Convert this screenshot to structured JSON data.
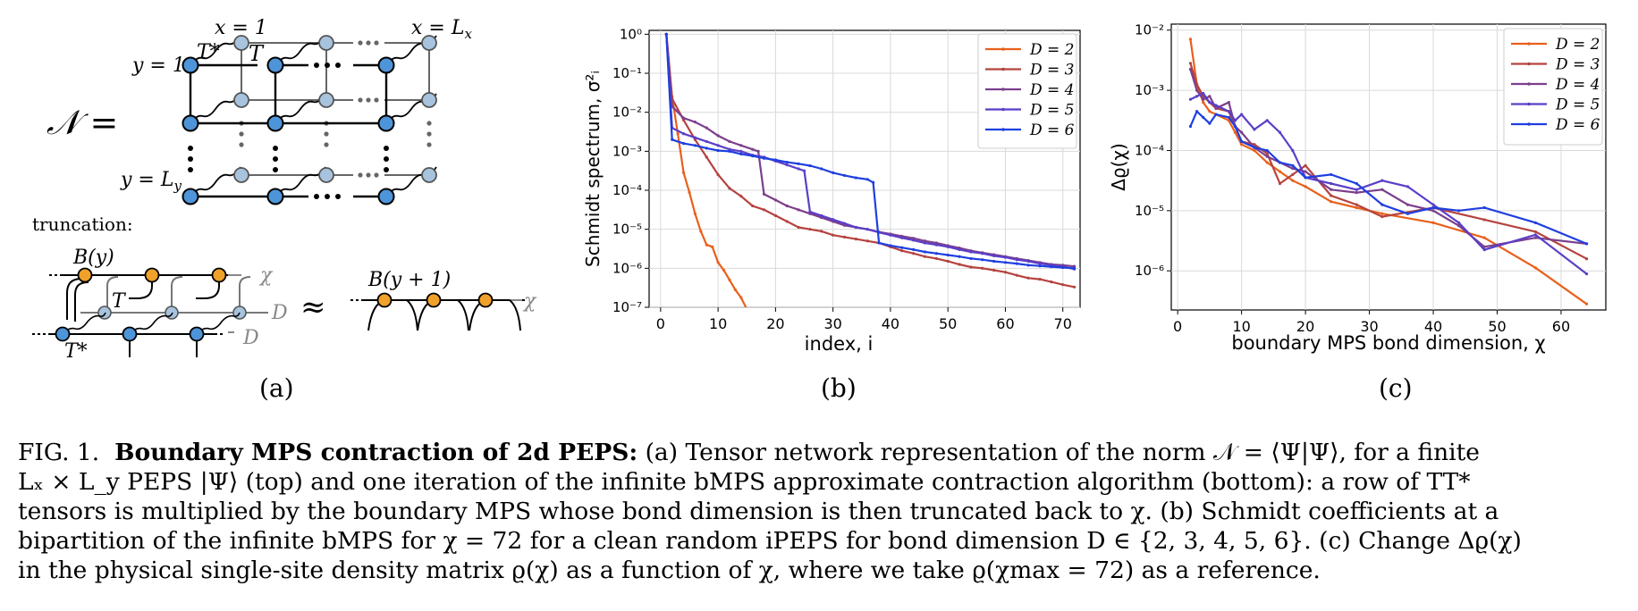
{
  "panel_a": {
    "norm_symbol": "𝒩 =",
    "label_x1": "x = 1",
    "label_xL": "x = L",
    "label_xL_sub": "x",
    "label_y1": "y = 1",
    "label_yL": "y = L",
    "label_yL_sub": "y",
    "label_T": "T",
    "label_Tstar": "T*",
    "truncation": "truncation:",
    "label_By": "B(y)",
    "label_By1": "B(y + 1)",
    "label_T2": "T",
    "label_Tstar2": "T*",
    "label_chi": "χ",
    "label_chi2": "χ",
    "label_D1": "D",
    "label_D2": "D",
    "approx": "≈",
    "panel_label": "(a)"
  },
  "panel_b_label": "(b)",
  "panel_c_label": "(c)",
  "colors": {
    "node_dark": "#4e94d8",
    "node_light": "#a7c3dd",
    "node_orange": "#f0a12a",
    "D2": "#e8601c",
    "D3": "#b5433f",
    "D4": "#7b3f8c",
    "D5": "#5b3ec8",
    "D6": "#1f3fe0"
  },
  "chart_data": [
    {
      "type": "line",
      "xlabel": "index, i",
      "ylabel": "Schmidt spectrum, σ²ᵢ",
      "xlim": [
        -2,
        73
      ],
      "ylim_log10": [
        -7,
        0.1
      ],
      "y_scale": "log",
      "xticks": [
        "0",
        "10",
        "20",
        "30",
        "40",
        "50",
        "60",
        "70"
      ],
      "yticks": [
        "10⁰",
        "10⁻¹",
        "10⁻²",
        "10⁻³",
        "10⁻⁴",
        "10⁻⁵",
        "10⁻⁶",
        "10⁻⁷"
      ],
      "grid": true,
      "legend_position": "top-right",
      "series": [
        {
          "name": "D = 2",
          "color": "#e8601c",
          "x": [
            1,
            2,
            3,
            4,
            5,
            6,
            7,
            8,
            9,
            10,
            11,
            12,
            13,
            14,
            15
          ],
          "y_log10": [
            0,
            -1.6,
            -2.55,
            -3.55,
            -4.05,
            -4.6,
            -5.05,
            -5.4,
            -5.45,
            -5.85,
            -6.05,
            -6.3,
            -6.55,
            -6.75,
            -7.05
          ]
        },
        {
          "name": "D = 3",
          "color": "#b5433f",
          "x": [
            1,
            2,
            4,
            6,
            8,
            10,
            12,
            14,
            16,
            18,
            20,
            22,
            24,
            26,
            28,
            30,
            32,
            34,
            36,
            38,
            40,
            42,
            44,
            46,
            48,
            50,
            52,
            54,
            56,
            58,
            60,
            62,
            64,
            66,
            68,
            70,
            72
          ],
          "y_log10": [
            0,
            -1.65,
            -2.2,
            -2.7,
            -3.15,
            -3.6,
            -3.95,
            -4.15,
            -4.4,
            -4.5,
            -4.65,
            -4.8,
            -4.95,
            -5.0,
            -5.05,
            -5.15,
            -5.2,
            -5.25,
            -5.3,
            -5.35,
            -5.45,
            -5.55,
            -5.62,
            -5.7,
            -5.75,
            -5.82,
            -5.9,
            -5.97,
            -6.0,
            -6.05,
            -6.1,
            -6.18,
            -6.25,
            -6.28,
            -6.35,
            -6.42,
            -6.48
          ]
        },
        {
          "name": "D = 4",
          "color": "#7b3f8c",
          "x": [
            1,
            2,
            4,
            6,
            8,
            10,
            12,
            14,
            16,
            17,
            18,
            20,
            22,
            24,
            26,
            28,
            30,
            32,
            34,
            36,
            38,
            40,
            42,
            44,
            46,
            48,
            50,
            52,
            54,
            56,
            58,
            60,
            62,
            64,
            66,
            68,
            70,
            72
          ],
          "y_log10": [
            0,
            -1.85,
            -2.15,
            -2.25,
            -2.4,
            -2.6,
            -2.75,
            -2.85,
            -2.95,
            -3.0,
            -4.1,
            -4.25,
            -4.4,
            -4.5,
            -4.6,
            -4.7,
            -4.8,
            -4.9,
            -4.95,
            -5.0,
            -5.07,
            -5.12,
            -5.18,
            -5.23,
            -5.3,
            -5.35,
            -5.42,
            -5.48,
            -5.55,
            -5.6,
            -5.65,
            -5.7,
            -5.75,
            -5.8,
            -5.85,
            -5.9,
            -5.92,
            -5.95
          ]
        },
        {
          "name": "D = 5",
          "color": "#5b3ec8",
          "x": [
            1,
            2,
            4,
            6,
            8,
            10,
            12,
            14,
            16,
            18,
            20,
            22,
            24,
            25,
            26,
            28,
            30,
            32,
            34,
            36,
            38,
            40,
            42,
            44,
            46,
            48,
            50,
            52,
            54,
            56,
            58,
            60,
            62,
            64,
            66,
            68,
            70,
            72
          ],
          "y_log10": [
            0,
            -2.4,
            -2.55,
            -2.65,
            -2.75,
            -2.85,
            -2.95,
            -3.0,
            -3.1,
            -3.15,
            -3.25,
            -3.35,
            -3.45,
            -3.5,
            -4.55,
            -4.65,
            -4.75,
            -4.85,
            -4.95,
            -5.0,
            -5.08,
            -5.15,
            -5.22,
            -5.28,
            -5.35,
            -5.4,
            -5.45,
            -5.52,
            -5.58,
            -5.62,
            -5.68,
            -5.72,
            -5.78,
            -5.82,
            -5.88,
            -5.92,
            -5.96,
            -6.02
          ]
        },
        {
          "name": "D = 6",
          "color": "#1f3fe0",
          "x": [
            1,
            2,
            4,
            6,
            8,
            10,
            12,
            14,
            16,
            18,
            20,
            22,
            24,
            26,
            28,
            30,
            32,
            34,
            36,
            37,
            38,
            40,
            42,
            44,
            46,
            48,
            50,
            52,
            54,
            56,
            58,
            60,
            62,
            64,
            66,
            68,
            70,
            72
          ],
          "y_log10": [
            0,
            -2.7,
            -2.8,
            -2.85,
            -2.92,
            -2.98,
            -3.0,
            -3.07,
            -3.12,
            -3.18,
            -3.22,
            -3.28,
            -3.32,
            -3.37,
            -3.45,
            -3.55,
            -3.62,
            -3.68,
            -3.72,
            -3.8,
            -5.35,
            -5.42,
            -5.47,
            -5.52,
            -5.58,
            -5.62,
            -5.66,
            -5.7,
            -5.75,
            -5.78,
            -5.82,
            -5.85,
            -5.88,
            -5.92,
            -5.94,
            -5.96,
            -5.98,
            -6.0
          ]
        }
      ]
    },
    {
      "type": "line",
      "xlabel": "boundary MPS bond dimension, χ",
      "ylabel": "Δϱ(χ)",
      "xlim": [
        -1,
        67
      ],
      "ylim_log10": [
        -6.65,
        -1.9
      ],
      "y_scale": "log",
      "xticks": [
        "0",
        "10",
        "20",
        "30",
        "40",
        "50",
        "60"
      ],
      "yticks": [
        "10⁻²",
        "10⁻³",
        "10⁻⁴",
        "10⁻⁵",
        "10⁻⁶"
      ],
      "grid": true,
      "legend_position": "top-right",
      "series": [
        {
          "name": "D = 2",
          "color": "#e8601c",
          "x": [
            2,
            3,
            4,
            5,
            6,
            8,
            9,
            10,
            12,
            14,
            16,
            18,
            20,
            24,
            28,
            32,
            40,
            48,
            56,
            64
          ],
          "y_log10": [
            -2.15,
            -2.9,
            -3.2,
            -3.35,
            -3.4,
            -3.5,
            -3.7,
            -3.9,
            -4.0,
            -4.2,
            -4.35,
            -4.5,
            -4.6,
            -4.85,
            -4.95,
            -5.05,
            -5.2,
            -5.45,
            -5.95,
            -6.55
          ]
        },
        {
          "name": "D = 3",
          "color": "#b5433f",
          "x": [
            2,
            3,
            4,
            5,
            6,
            8,
            9,
            10,
            12,
            14,
            16,
            18,
            20,
            24,
            28,
            32,
            40,
            48,
            56,
            64
          ],
          "y_log10": [
            -2.55,
            -2.9,
            -3.1,
            -3.2,
            -3.3,
            -3.35,
            -3.6,
            -3.85,
            -3.9,
            -4.05,
            -4.55,
            -4.4,
            -4.25,
            -4.75,
            -4.9,
            -5.1,
            -4.95,
            -5.15,
            -5.35,
            -5.8
          ]
        },
        {
          "name": "D = 4",
          "color": "#7b3f8c",
          "x": [
            2,
            3,
            4,
            5,
            6,
            8,
            9,
            10,
            12,
            14,
            16,
            18,
            20,
            24,
            28,
            32,
            36,
            40,
            44,
            48,
            56,
            64
          ],
          "y_log10": [
            -2.65,
            -3.0,
            -3.15,
            -3.1,
            -3.3,
            -3.2,
            -3.6,
            -3.7,
            -3.95,
            -4.1,
            -4.2,
            -4.3,
            -4.35,
            -4.65,
            -4.7,
            -4.65,
            -4.9,
            -5.0,
            -5.25,
            -5.6,
            -5.45,
            -5.55
          ]
        },
        {
          "name": "D = 5",
          "color": "#5b3ec8",
          "x": [
            2,
            3,
            4,
            5,
            6,
            8,
            9,
            10,
            12,
            14,
            16,
            18,
            20,
            24,
            28,
            32,
            36,
            40,
            44,
            48,
            56,
            64
          ],
          "y_log10": [
            -3.15,
            -3.1,
            -3.05,
            -3.2,
            -3.25,
            -3.35,
            -3.5,
            -3.4,
            -3.65,
            -3.5,
            -3.7,
            -4.0,
            -4.45,
            -4.55,
            -4.65,
            -4.5,
            -4.6,
            -4.9,
            -5.2,
            -5.65,
            -5.4,
            -6.05
          ]
        },
        {
          "name": "D = 6",
          "color": "#1f3fe0",
          "x": [
            2,
            3,
            4,
            5,
            6,
            8,
            9,
            10,
            12,
            14,
            16,
            18,
            20,
            24,
            28,
            32,
            36,
            40,
            44,
            48,
            56,
            64
          ],
          "y_log10": [
            -3.6,
            -3.35,
            -3.45,
            -3.55,
            -3.4,
            -3.45,
            -3.6,
            -3.85,
            -3.95,
            -4.0,
            -4.2,
            -4.25,
            -4.45,
            -4.4,
            -4.55,
            -4.9,
            -5.05,
            -4.95,
            -5.0,
            -4.95,
            -5.2,
            -5.55
          ]
        }
      ]
    }
  ],
  "caption": {
    "fig": "FIG. 1.",
    "title": "Boundary MPS contraction of 2d PEPS:",
    "l1": "(a) Tensor network representation of the norm 𝒩 = ⟨Ψ|Ψ⟩, for a finite",
    "l2": "Lₓ × L_y PEPS |Ψ⟩ (top) and one iteration of the infinite bMPS approximate contraction algorithm (bottom): a row of TT*",
    "l3": "tensors is multiplied by the boundary MPS whose bond dimension is then truncated back to χ. (b) Schmidt coefficients at a",
    "l4": "bipartition of the infinite bMPS for χ = 72 for a clean random iPEPS for bond dimension D ∈ {2, 3, 4, 5, 6}. (c) Change Δϱ(χ)",
    "l5": "in the physical single-site density matrix ϱ(χ) as a function of χ, where we take ϱ(χmax = 72) as a reference."
  }
}
